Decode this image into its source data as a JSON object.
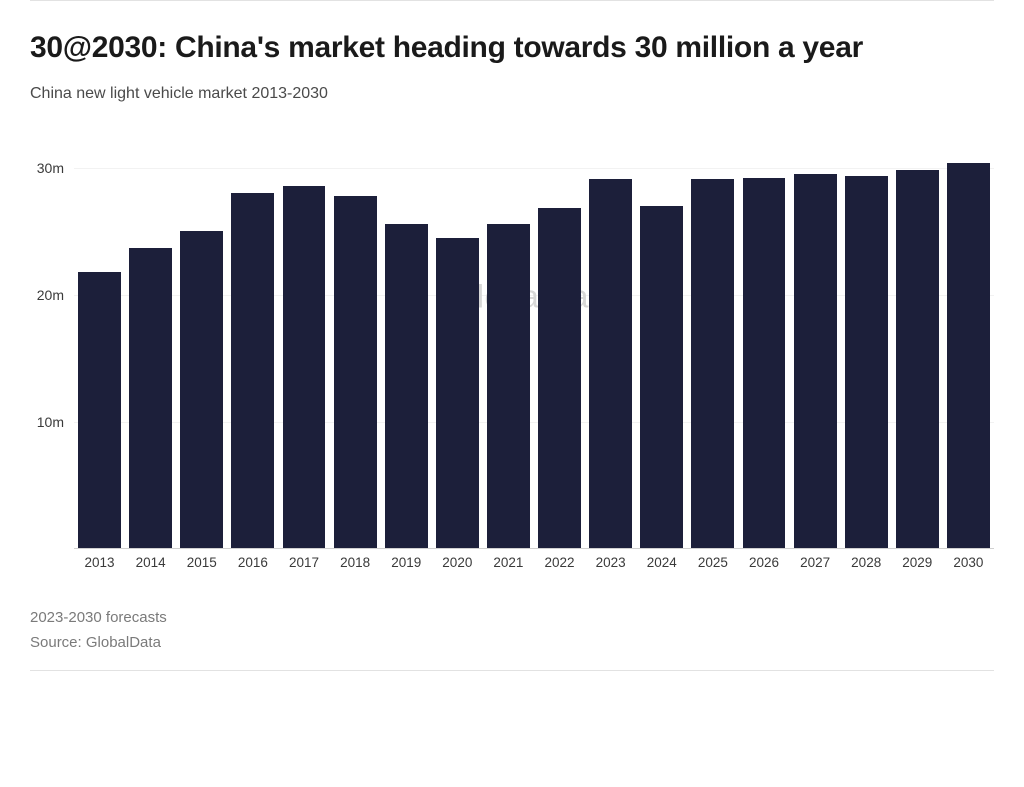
{
  "title": "30@2030: China's market heading towards 30 million a year",
  "subtitle": "China new light vehicle market 2013-2030",
  "watermark": "GlobalData",
  "footnote1": "2023-2030 forecasts",
  "footnote2": "Source: GlobalData",
  "chart": {
    "type": "bar",
    "categories": [
      "2013",
      "2014",
      "2015",
      "2016",
      "2017",
      "2018",
      "2019",
      "2020",
      "2021",
      "2022",
      "2023",
      "2024",
      "2025",
      "2026",
      "2027",
      "2028",
      "2029",
      "2030"
    ],
    "values": [
      21.8,
      23.7,
      25.0,
      28.0,
      28.6,
      27.8,
      25.6,
      24.5,
      25.6,
      26.8,
      29.1,
      27.0,
      29.1,
      29.2,
      29.5,
      29.4,
      29.8,
      30.4
    ],
    "value_unit": "million",
    "bar_color": "#1c1f3a",
    "background_color": "#ffffff",
    "grid_color": "#f2f2f2",
    "baseline_color": "#d0d0d0",
    "axis_text_color": "#3a3a3a",
    "yticks": [
      {
        "value": 10,
        "label": "10m"
      },
      {
        "value": 20,
        "label": "20m"
      },
      {
        "value": 30,
        "label": "30m"
      }
    ],
    "ylim": [
      0,
      32
    ],
    "bar_width_ratio": 0.84,
    "title_fontsize": 30,
    "subtitle_fontsize": 16,
    "axis_fontsize": 14,
    "footnote_fontsize": 15
  }
}
